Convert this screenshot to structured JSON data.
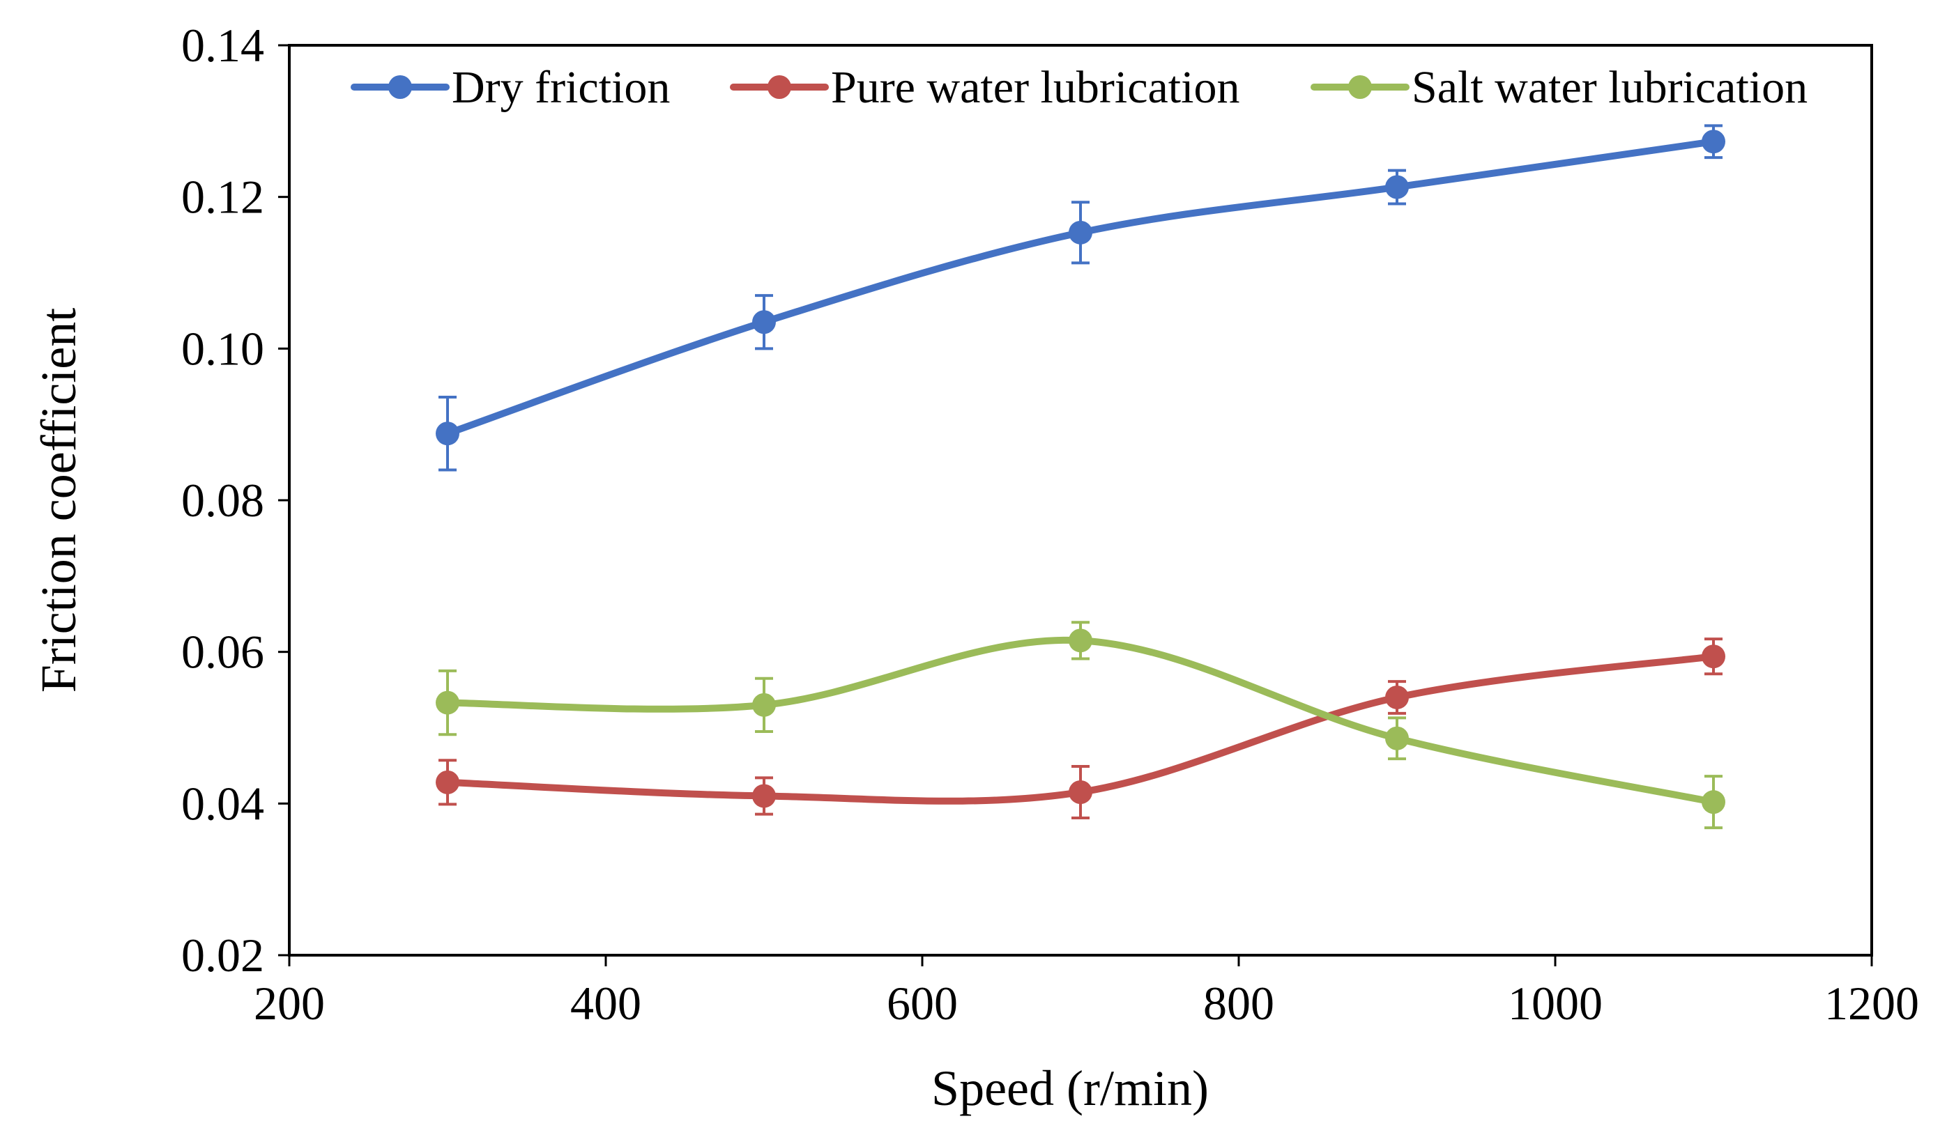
{
  "chart_data": {
    "type": "line",
    "title": "",
    "xlabel": "Speed (r/min)",
    "ylabel": "Friction coefficient",
    "xlim": [
      200,
      1200
    ],
    "ylim": [
      0.02,
      0.14
    ],
    "x_ticks": [
      200,
      400,
      600,
      800,
      1000,
      1200
    ],
    "x_tick_labels": [
      "200",
      "400",
      "600",
      "800",
      "1000",
      "1200"
    ],
    "y_ticks": [
      0.02,
      0.04,
      0.06,
      0.08,
      0.1,
      0.12,
      0.14
    ],
    "y_tick_labels": [
      "0.02",
      "0.04",
      "0.06",
      "0.08",
      "0.10",
      "0.12",
      "0.14"
    ],
    "grid": false,
    "legend_position": "top",
    "smooth_lines": true,
    "error_bars": true,
    "x": [
      300,
      500,
      700,
      900,
      1100
    ],
    "series": [
      {
        "name": "Dry friction",
        "color": "#4472C4",
        "values": [
          0.0888,
          0.1035,
          0.1153,
          0.1213,
          0.1273
        ],
        "errors": [
          0.0048,
          0.0035,
          0.004,
          0.0022,
          0.0021
        ]
      },
      {
        "name": "Pure water lubrication",
        "color": "#C0504D",
        "values": [
          0.0428,
          0.041,
          0.0415,
          0.054,
          0.0594
        ],
        "errors": [
          0.0029,
          0.0024,
          0.0034,
          0.0021,
          0.0023
        ]
      },
      {
        "name": "Salt water lubrication",
        "color": "#9BBB59",
        "values": [
          0.0533,
          0.053,
          0.0615,
          0.0486,
          0.0402
        ],
        "errors": [
          0.0042,
          0.0035,
          0.0024,
          0.0027,
          0.0034
        ]
      }
    ]
  }
}
